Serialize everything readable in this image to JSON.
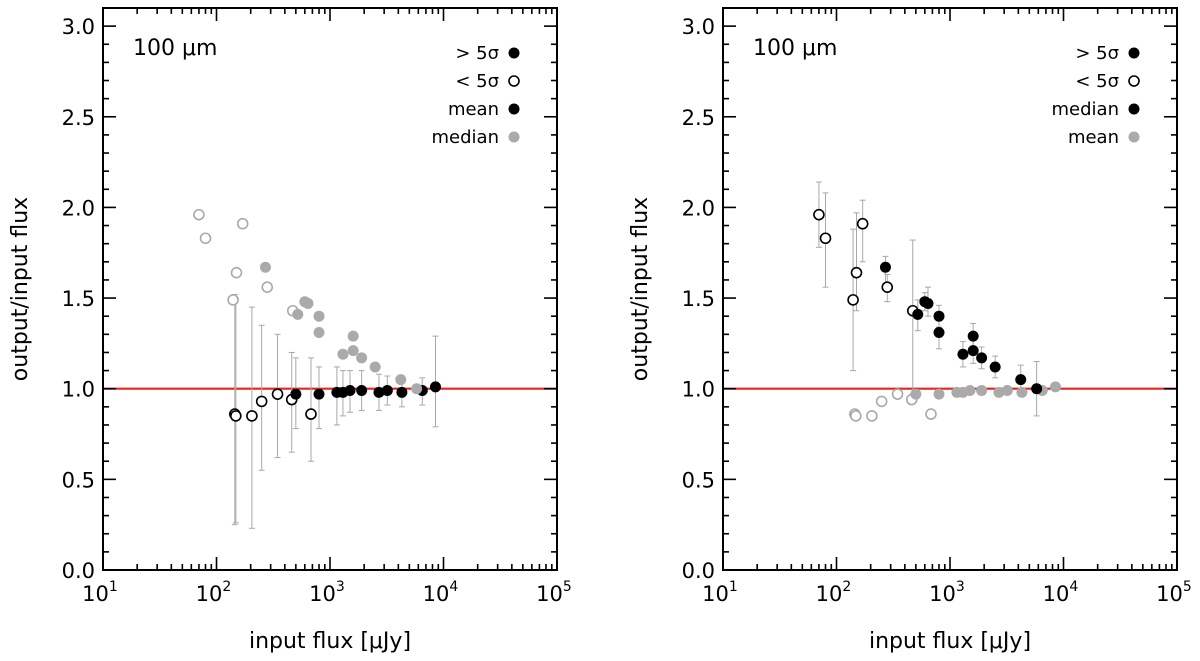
{
  "chart_data": [
    {
      "type": "scatter",
      "panel": "left",
      "annotation": "100 μm",
      "xlabel": "input flux [μJy]",
      "ylabel": "output/input flux",
      "xscale": "log",
      "xlim": [
        10,
        100000
      ],
      "ylim": [
        0.0,
        3.1
      ],
      "xtick_values": [
        10,
        100,
        1000,
        10000,
        100000
      ],
      "xtick_labels": [
        {
          "base": "10",
          "exp": "1"
        },
        {
          "base": "10",
          "exp": "2"
        },
        {
          "base": "10",
          "exp": "3"
        },
        {
          "base": "10",
          "exp": "4"
        },
        {
          "base": "10",
          "exp": "5"
        }
      ],
      "yticks": [
        0.0,
        0.5,
        1.0,
        1.5,
        2.0,
        2.5,
        3.0
      ],
      "ytick_labels": [
        "0.0",
        "0.5",
        "1.0",
        "1.5",
        "2.0",
        "2.5",
        "3.0"
      ],
      "reference_line": {
        "y": 1.0,
        "color": "#e8231e"
      },
      "legend": [
        {
          "label": "> 5σ",
          "marker": "filled",
          "color": "#000000"
        },
        {
          "label": "< 5σ",
          "marker": "open",
          "color": "#000000"
        },
        {
          "label": "mean",
          "marker": "filled",
          "color": "#000000"
        },
        {
          "label": "median",
          "marker": "filled",
          "color": "#aaaaaa"
        }
      ],
      "series": [
        {
          "name": "mean",
          "color": "#000000",
          "points": [
            {
              "x": 145,
              "y": 0.86,
              "filled": false,
              "err": [
                0.25,
                1.52
              ]
            },
            {
              "x": 148,
              "y": 0.85,
              "filled": false,
              "err": [
                0.26,
                1.5
              ]
            },
            {
              "x": 205,
              "y": 0.85,
              "filled": false,
              "err": [
                0.23,
                1.45
              ]
            },
            {
              "x": 250,
              "y": 0.93,
              "filled": false,
              "err": [
                0.55,
                1.35
              ]
            },
            {
              "x": 345,
              "y": 0.97,
              "filled": false,
              "err": [
                0.62,
                1.3
              ]
            },
            {
              "x": 460,
              "y": 0.94,
              "filled": false,
              "err": [
                0.65,
                1.2
              ]
            },
            {
              "x": 500,
              "y": 0.97,
              "filled": true,
              "err": [
                0.78,
                1.17
              ]
            },
            {
              "x": 680,
              "y": 0.86,
              "filled": false,
              "err": [
                0.6,
                1.17
              ]
            },
            {
              "x": 800,
              "y": 0.97,
              "filled": true,
              "err": [
                0.78,
                1.12
              ]
            },
            {
              "x": 1150,
              "y": 0.98,
              "filled": true,
              "err": [
                0.8,
                1.12
              ]
            },
            {
              "x": 1300,
              "y": 0.98,
              "filled": true,
              "err": [
                0.85,
                1.1
              ]
            },
            {
              "x": 1500,
              "y": 0.99,
              "filled": true,
              "err": [
                0.87,
                1.1
              ]
            },
            {
              "x": 1900,
              "y": 0.99,
              "filled": true,
              "err": [
                0.88,
                1.1
              ]
            },
            {
              "x": 2700,
              "y": 0.98,
              "filled": true,
              "err": [
                0.88,
                1.08
              ]
            },
            {
              "x": 3200,
              "y": 0.99,
              "filled": true,
              "err": [
                0.91,
                1.07
              ]
            },
            {
              "x": 4300,
              "y": 0.98,
              "filled": true,
              "err": [
                0.9,
                1.07
              ]
            },
            {
              "x": 6500,
              "y": 0.99,
              "filled": true,
              "err": [
                0.91,
                1.06
              ]
            },
            {
              "x": 8500,
              "y": 1.01,
              "filled": true,
              "err": [
                0.79,
                1.29
              ]
            }
          ]
        },
        {
          "name": "median",
          "color": "#aaaaaa",
          "points": [
            {
              "x": 70,
              "y": 1.96,
              "filled": false
            },
            {
              "x": 80,
              "y": 1.83,
              "filled": false
            },
            {
              "x": 140,
              "y": 1.49,
              "filled": false
            },
            {
              "x": 150,
              "y": 1.64,
              "filled": false
            },
            {
              "x": 170,
              "y": 1.91,
              "filled": false
            },
            {
              "x": 270,
              "y": 1.67,
              "filled": true
            },
            {
              "x": 280,
              "y": 1.56,
              "filled": false
            },
            {
              "x": 470,
              "y": 1.43,
              "filled": false
            },
            {
              "x": 520,
              "y": 1.41,
              "filled": true
            },
            {
              "x": 600,
              "y": 1.48,
              "filled": true
            },
            {
              "x": 640,
              "y": 1.47,
              "filled": true
            },
            {
              "x": 800,
              "y": 1.4,
              "filled": true
            },
            {
              "x": 800,
              "y": 1.31,
              "filled": true
            },
            {
              "x": 1300,
              "y": 1.19,
              "filled": true
            },
            {
              "x": 1600,
              "y": 1.29,
              "filled": true
            },
            {
              "x": 1600,
              "y": 1.21,
              "filled": true
            },
            {
              "x": 1900,
              "y": 1.17,
              "filled": true
            },
            {
              "x": 2500,
              "y": 1.12,
              "filled": true
            },
            {
              "x": 4200,
              "y": 1.05,
              "filled": true
            },
            {
              "x": 5800,
              "y": 1.0,
              "filled": true
            }
          ]
        }
      ]
    },
    {
      "type": "scatter",
      "panel": "right",
      "annotation": "100 μm",
      "xlabel": "input flux [μJy]",
      "ylabel": "output/input flux",
      "xscale": "log",
      "xlim": [
        10,
        100000
      ],
      "ylim": [
        0.0,
        3.1
      ],
      "xtick_values": [
        10,
        100,
        1000,
        10000,
        100000
      ],
      "xtick_labels": [
        {
          "base": "10",
          "exp": "1"
        },
        {
          "base": "10",
          "exp": "2"
        },
        {
          "base": "10",
          "exp": "3"
        },
        {
          "base": "10",
          "exp": "4"
        },
        {
          "base": "10",
          "exp": "5"
        }
      ],
      "yticks": [
        0.0,
        0.5,
        1.0,
        1.5,
        2.0,
        2.5,
        3.0
      ],
      "ytick_labels": [
        "0.0",
        "0.5",
        "1.0",
        "1.5",
        "2.0",
        "2.5",
        "3.0"
      ],
      "reference_line": {
        "y": 1.0,
        "color": "#e8231e"
      },
      "legend": [
        {
          "label": "> 5σ",
          "marker": "filled",
          "color": "#000000"
        },
        {
          "label": "< 5σ",
          "marker": "open",
          "color": "#000000"
        },
        {
          "label": "median",
          "marker": "filled",
          "color": "#000000"
        },
        {
          "label": "mean",
          "marker": "filled",
          "color": "#aaaaaa"
        }
      ],
      "series": [
        {
          "name": "mean",
          "color": "#aaaaaa",
          "points": [
            {
              "x": 145,
              "y": 0.86,
              "filled": false
            },
            {
              "x": 148,
              "y": 0.85,
              "filled": false
            },
            {
              "x": 205,
              "y": 0.85,
              "filled": false
            },
            {
              "x": 250,
              "y": 0.93,
              "filled": false
            },
            {
              "x": 345,
              "y": 0.97,
              "filled": false
            },
            {
              "x": 460,
              "y": 0.94,
              "filled": false
            },
            {
              "x": 500,
              "y": 0.97,
              "filled": true
            },
            {
              "x": 680,
              "y": 0.86,
              "filled": false
            },
            {
              "x": 800,
              "y": 0.97,
              "filled": true
            },
            {
              "x": 1150,
              "y": 0.98,
              "filled": true
            },
            {
              "x": 1300,
              "y": 0.98,
              "filled": true
            },
            {
              "x": 1500,
              "y": 0.99,
              "filled": true
            },
            {
              "x": 1900,
              "y": 0.99,
              "filled": true
            },
            {
              "x": 2700,
              "y": 0.98,
              "filled": true
            },
            {
              "x": 3200,
              "y": 0.99,
              "filled": true
            },
            {
              "x": 4300,
              "y": 0.98,
              "filled": true
            },
            {
              "x": 6500,
              "y": 0.99,
              "filled": true
            },
            {
              "x": 8500,
              "y": 1.01,
              "filled": true
            }
          ]
        },
        {
          "name": "median",
          "color": "#000000",
          "points": [
            {
              "x": 70,
              "y": 1.96,
              "filled": false,
              "err": [
                1.78,
                2.14
              ]
            },
            {
              "x": 80,
              "y": 1.83,
              "filled": false,
              "err": [
                1.56,
                2.08
              ]
            },
            {
              "x": 140,
              "y": 1.49,
              "filled": false,
              "err": [
                1.1,
                1.88
              ]
            },
            {
              "x": 150,
              "y": 1.64,
              "filled": false,
              "err": [
                1.43,
                1.97
              ]
            },
            {
              "x": 170,
              "y": 1.91,
              "filled": false,
              "err": [
                1.7,
                2.04
              ]
            },
            {
              "x": 270,
              "y": 1.67,
              "filled": true,
              "err": [
                1.58,
                1.73
              ]
            },
            {
              "x": 280,
              "y": 1.56,
              "filled": false,
              "err": [
                1.48,
                1.63
              ]
            },
            {
              "x": 470,
              "y": 1.43,
              "filled": false,
              "err": [
                0.97,
                1.82
              ]
            },
            {
              "x": 520,
              "y": 1.41,
              "filled": true,
              "err": [
                1.32,
                1.49
              ]
            },
            {
              "x": 600,
              "y": 1.48,
              "filled": true,
              "err": [
                1.43,
                1.53
              ]
            },
            {
              "x": 640,
              "y": 1.47,
              "filled": true,
              "err": [
                1.4,
                1.56
              ]
            },
            {
              "x": 800,
              "y": 1.4,
              "filled": true,
              "err": [
                1.34,
                1.46
              ]
            },
            {
              "x": 800,
              "y": 1.31,
              "filled": true,
              "err": [
                1.22,
                1.4
              ]
            },
            {
              "x": 1300,
              "y": 1.19,
              "filled": true,
              "err": [
                1.12,
                1.26
              ]
            },
            {
              "x": 1600,
              "y": 1.29,
              "filled": true,
              "err": [
                1.22,
                1.36
              ]
            },
            {
              "x": 1600,
              "y": 1.21,
              "filled": true,
              "err": [
                1.14,
                1.28
              ]
            },
            {
              "x": 1900,
              "y": 1.17,
              "filled": true,
              "err": [
                1.11,
                1.23
              ]
            },
            {
              "x": 2500,
              "y": 1.12,
              "filled": true,
              "err": [
                1.06,
                1.18
              ]
            },
            {
              "x": 4200,
              "y": 1.05,
              "filled": true,
              "err": [
                0.98,
                1.13
              ]
            },
            {
              "x": 5800,
              "y": 1.0,
              "filled": true,
              "err": [
                0.85,
                1.15
              ]
            }
          ]
        }
      ]
    }
  ]
}
